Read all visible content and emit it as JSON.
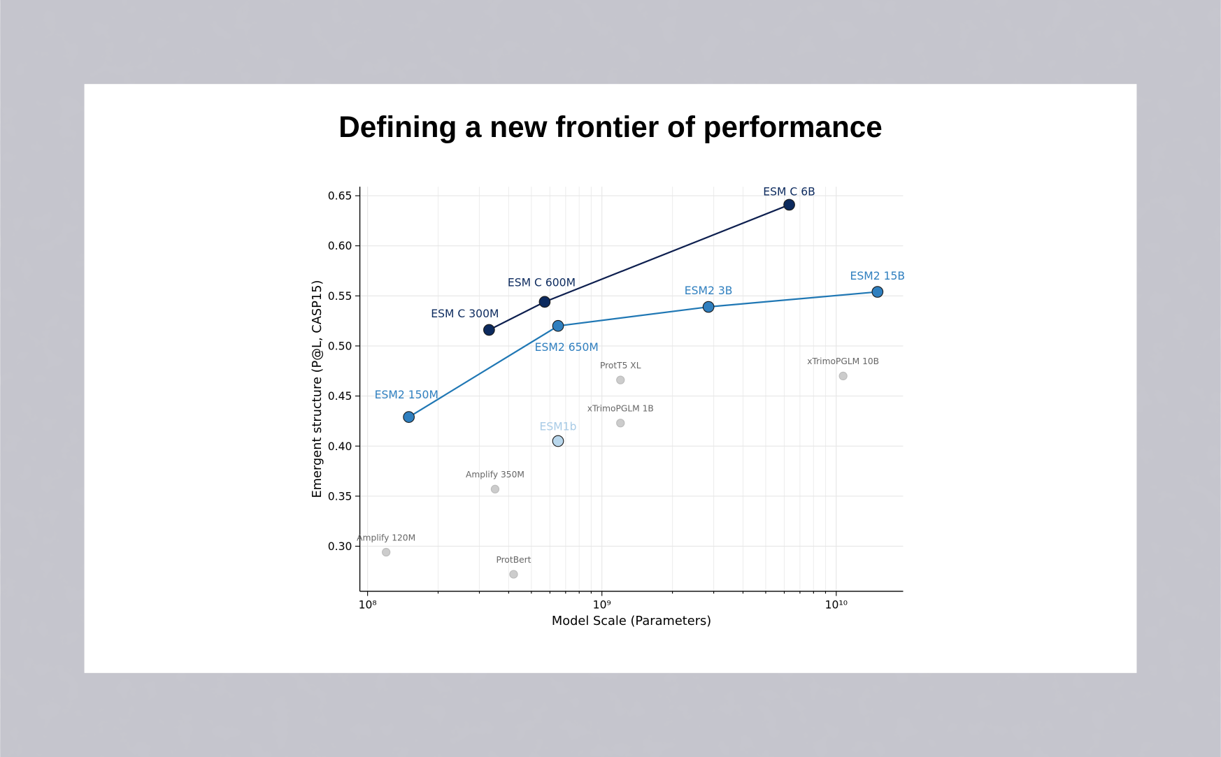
{
  "chart_data": {
    "type": "scatter",
    "title": "Defining a new frontier of performance",
    "xlabel": "Model Scale (Parameters)",
    "ylabel": "Emergent structure (P@L, CASP15)",
    "xscale": "log",
    "xlim": [
      92700000,
      19300000000
    ],
    "ylim": [
      0.255,
      0.659
    ],
    "xticks": [
      {
        "value": 100000000,
        "label": "10⁸"
      },
      {
        "value": 1000000000,
        "label": "10⁹"
      },
      {
        "value": 10000000000,
        "label": "10¹⁰"
      }
    ],
    "xticks_minor": [
      200000000,
      300000000,
      400000000,
      500000000,
      600000000,
      700000000,
      800000000,
      900000000,
      2000000000,
      3000000000,
      4000000000,
      5000000000,
      6000000000,
      7000000000,
      8000000000,
      9000000000
    ],
    "yticks": [
      {
        "value": 0.3,
        "label": "0.30"
      },
      0.35,
      {
        "value": 0.4,
        "label": "0.40"
      },
      0.45,
      {
        "value": 0.5,
        "label": "0.50"
      },
      0.55,
      {
        "value": 0.6,
        "label": "0.60"
      },
      0.65
    ],
    "grid": true,
    "series": [
      {
        "color": "#0c2a5e",
        "line": true,
        "x": [
          330000000,
          570000000,
          6300000000
        ],
        "values": [
          0.516,
          0.544,
          0.641
        ],
        "labels": [
          "ESM C 300M",
          "ESM C 600M",
          "ESM C 6B"
        ]
      },
      {
        "color": "#2f7fbf",
        "line": true,
        "x": [
          150000000,
          650000000,
          2850000000,
          15000000000
        ],
        "values": [
          0.429,
          0.52,
          0.539,
          0.554
        ],
        "labels": [
          "ESM2 150M",
          "ESM2 650M",
          "ESM2 3B",
          "ESM2 15B"
        ]
      },
      {
        "color": "#b9d7ec",
        "line": false,
        "x": [
          650000000
        ],
        "values": [
          0.405
        ],
        "labels": [
          "ESM1b"
        ]
      },
      {
        "color": "#cccccc",
        "line": false,
        "x": [
          1200000000,
          1200000000,
          10700000000,
          350000000,
          120000000,
          420000000
        ],
        "values": [
          0.466,
          0.423,
          0.47,
          0.357,
          0.294,
          0.272
        ],
        "labels": [
          "ProtT5 XL",
          "xTrimoPGLM 1B",
          "xTrimoPGLM 10B",
          "Amplify 350M",
          "Amplify 120M",
          "ProtBert"
        ]
      }
    ]
  }
}
